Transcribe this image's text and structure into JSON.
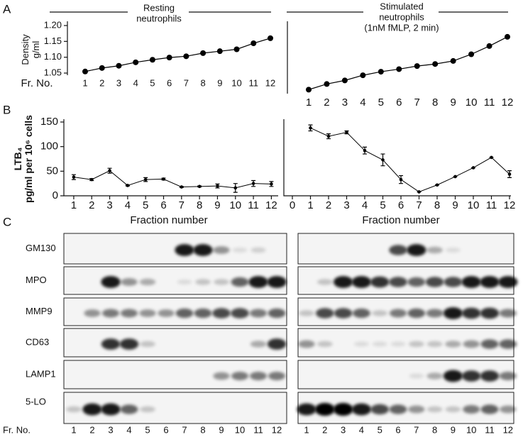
{
  "panel_labels": [
    "A",
    "B",
    "C"
  ],
  "chart_data": [
    {
      "type": "line",
      "title": [
        "Resting",
        "neutrophils"
      ],
      "ylabel": [
        "Density",
        "g/ml"
      ],
      "xlabel": "Fr. No.",
      "categories": [
        "1",
        "2",
        "3",
        "4",
        "5",
        "6",
        "7",
        "8",
        "9",
        "10",
        "11",
        "12"
      ],
      "values": [
        1.055,
        1.066,
        1.073,
        1.084,
        1.092,
        1.099,
        1.103,
        1.113,
        1.119,
        1.125,
        1.144,
        1.16
      ],
      "color": "#000000",
      "ylim": [
        1.05,
        1.2
      ],
      "yticks": [
        1.05,
        {
          "value": 1.1,
          "label": "1.10"
        },
        1.15,
        {
          "value": 1.2,
          "label": "1.20"
        }
      ]
    },
    {
      "type": "line",
      "title": [
        "Stimulated",
        "neutrophils",
        "(1nM fMLP, 2 min)"
      ],
      "categories": [
        "1",
        "2",
        "3",
        "4",
        "5",
        "6",
        "7",
        "8",
        "9",
        "10",
        "11",
        "12"
      ],
      "values": [
        1.055,
        1.066,
        1.073,
        1.083,
        1.09,
        1.095,
        1.101,
        1.105,
        1.111,
        1.124,
        1.14,
        1.158
      ],
      "color": "#000000",
      "ylim": [
        1.05,
        1.18
      ]
    },
    {
      "type": "errorline",
      "ylabel": [
        "LTB₄",
        "pg/ml per 10⁶ cells"
      ],
      "xlabel": "Fraction number",
      "x": [
        1,
        2,
        3,
        4,
        5,
        6,
        7,
        8,
        9,
        10,
        11,
        12
      ],
      "values": [
        38,
        33,
        51,
        21,
        33,
        34,
        18,
        19,
        20,
        16,
        25,
        24
      ],
      "errors": [
        5,
        2,
        5,
        1,
        4,
        2,
        1,
        1,
        4,
        9,
        6,
        5
      ],
      "color": "#000000",
      "xlim": [
        0.45,
        12.3
      ],
      "xticks": [
        1,
        2,
        3,
        4,
        5,
        6,
        7,
        8,
        9,
        10,
        11,
        12
      ],
      "ylim": [
        0,
        150
      ],
      "yticks": [
        0,
        50,
        100,
        150
      ]
    },
    {
      "type": "errorline",
      "xlabel": "Fraction number",
      "x": [
        1,
        2,
        3,
        4,
        5,
        6,
        7,
        8,
        9,
        10,
        11,
        12
      ],
      "values": [
        138,
        121,
        129,
        92,
        73,
        33,
        8,
        22,
        39,
        57,
        78,
        44
      ],
      "errors": [
        6,
        5,
        3,
        7,
        12,
        8,
        0,
        0,
        0,
        0,
        0,
        7
      ],
      "color": "#000000",
      "xlim": [
        0,
        12
      ],
      "xticks": [
        0,
        1,
        2,
        3,
        4,
        5,
        6,
        7,
        8,
        9,
        10,
        11,
        12
      ],
      "ylim": [
        0,
        150
      ]
    }
  ],
  "blots": {
    "rows": [
      "GM130",
      "MPO",
      "MMP9",
      "CD63",
      "LAMP1",
      "5-LO"
    ],
    "fraction_label": "Fr. No.",
    "fractions": [
      "1",
      "2",
      "3",
      "4",
      "5",
      "6",
      "7",
      "8",
      "9",
      "10",
      "11",
      "12"
    ]
  }
}
